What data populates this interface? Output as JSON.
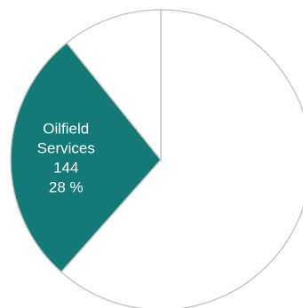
{
  "chart_data": {
    "type": "pie",
    "slices": [
      {
        "label": "",
        "value": 320,
        "percent": "",
        "color": "#ffffff",
        "label_color": "#333333"
      },
      {
        "label": "Oilfield Services",
        "value": 144,
        "percent": "28 %",
        "color": "#137a77",
        "label_color": "#ffffff"
      },
      {
        "label": "",
        "value": 56,
        "percent": "",
        "color": "#ffffff",
        "label_color": "#333333"
      }
    ],
    "start_angle_deg": 0,
    "direction": "clockwise",
    "edge_color": "#c8c8c8"
  }
}
